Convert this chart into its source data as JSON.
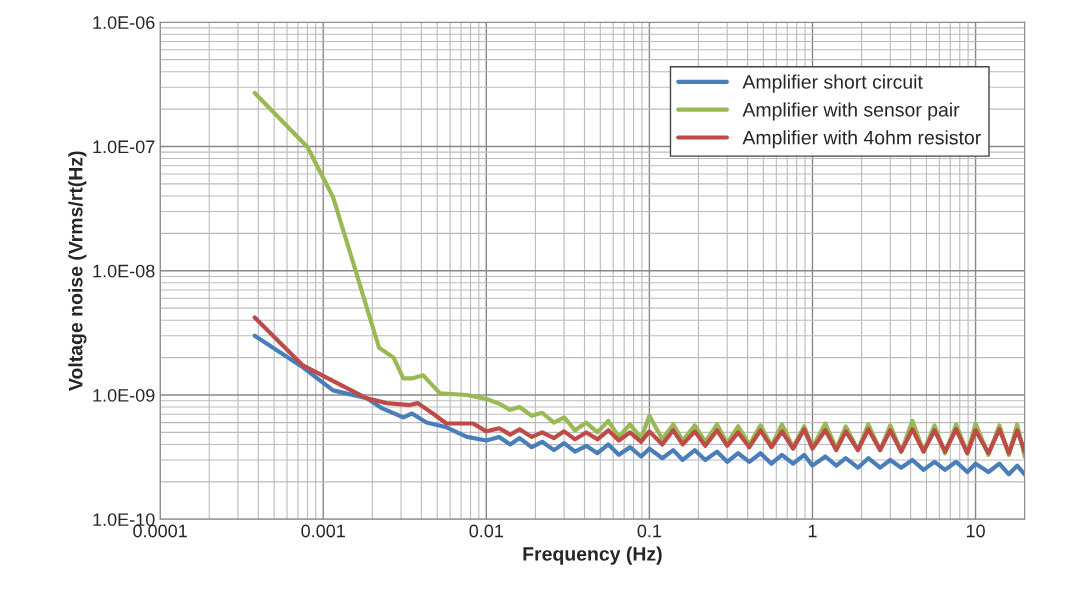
{
  "chart_data": {
    "type": "line",
    "xlabel": "Frequency (Hz)",
    "ylabel": "Voltage noise (Vrms/rt(Hz)",
    "log": "xy",
    "grid": true,
    "legend": "top right",
    "marker": "none",
    "line_style": "solid",
    "xlim": [
      0.0001,
      20
    ],
    "xticks": [
      0.0001,
      0.001,
      0.01,
      0.1,
      1,
      10
    ],
    "ylim": [
      1e-10,
      1e-06
    ],
    "yticks": [
      {
        "value": 1e-10,
        "label": "1.0E-10"
      },
      {
        "value": 1e-09,
        "label": "1.0E-09"
      },
      {
        "value": 1e-08,
        "label": "1.0E-08"
      },
      {
        "value": 1e-07,
        "label": "1.0E-07"
      },
      {
        "value": 1e-06,
        "label": "1.0E-06"
      }
    ],
    "series": [
      {
        "name": "Amplifier short circuit",
        "color": "#4a7ebb",
        "x": [
          0.00038,
          0.00075,
          0.00115,
          0.00185,
          0.0023,
          0.0031,
          0.0035,
          0.0043,
          0.0057,
          0.0076,
          0.01,
          0.012,
          0.014,
          0.016,
          0.019,
          0.022,
          0.026,
          0.03,
          0.035,
          0.041,
          0.048,
          0.056,
          0.065,
          0.076,
          0.089,
          0.1,
          0.12,
          0.14,
          0.16,
          0.19,
          0.22,
          0.26,
          0.3,
          0.35,
          0.41,
          0.48,
          0.56,
          0.65,
          0.76,
          0.89,
          1.0,
          1.2,
          1.4,
          1.6,
          1.9,
          2.2,
          2.6,
          3.0,
          3.5,
          4.1,
          4.8,
          5.6,
          6.5,
          7.6,
          8.9,
          10,
          12,
          14,
          16,
          18,
          20
        ],
        "values": [
          3e-09,
          1.67e-09,
          1.09e-09,
          9.4e-10,
          7.8e-10,
          6.6e-10,
          7.1e-10,
          6e-10,
          5.5e-10,
          4.6e-10,
          4.3e-10,
          4.6e-10,
          4e-10,
          4.5e-10,
          3.8e-10,
          4.2e-10,
          3.6e-10,
          4.1e-10,
          3.5e-10,
          3.9e-10,
          3.4e-10,
          4e-10,
          3.3e-10,
          3.8e-10,
          3.2e-10,
          3.7e-10,
          3.1e-10,
          3.6e-10,
          3e-10,
          3.6e-10,
          3e-10,
          3.5e-10,
          2.9e-10,
          3.4e-10,
          2.9e-10,
          3.4e-10,
          2.8e-10,
          3.3e-10,
          2.8e-10,
          3.3e-10,
          2.7e-10,
          3.2e-10,
          2.7e-10,
          3.1e-10,
          2.6e-10,
          3.1e-10,
          2.6e-10,
          3e-10,
          2.6e-10,
          3e-10,
          2.5e-10,
          2.9e-10,
          2.5e-10,
          2.9e-10,
          2.4e-10,
          2.8e-10,
          2.4e-10,
          2.8e-10,
          2.3e-10,
          2.7e-10,
          2.3e-10
        ]
      },
      {
        "name": "Amplifier with sensor pair",
        "color": "#98b954",
        "x": [
          0.00038,
          0.0008,
          0.00115,
          0.0016,
          0.0019,
          0.0022,
          0.0027,
          0.0031,
          0.0035,
          0.0041,
          0.0052,
          0.0076,
          0.01,
          0.012,
          0.014,
          0.016,
          0.019,
          0.022,
          0.026,
          0.03,
          0.035,
          0.041,
          0.048,
          0.056,
          0.065,
          0.076,
          0.089,
          0.1,
          0.12,
          0.14,
          0.16,
          0.19,
          0.22,
          0.26,
          0.3,
          0.35,
          0.41,
          0.48,
          0.56,
          0.65,
          0.76,
          0.89,
          1.0,
          1.2,
          1.4,
          1.6,
          1.9,
          2.2,
          2.6,
          3.0,
          3.5,
          4.1,
          4.8,
          5.6,
          6.5,
          7.6,
          8.9,
          10,
          12,
          14,
          16,
          18,
          20
        ],
        "values": [
          2.7e-07,
          9.9e-08,
          3.9e-08,
          9.5e-09,
          4.5e-09,
          2.4e-09,
          2e-09,
          1.36e-09,
          1.36e-09,
          1.44e-09,
          1.03e-09,
          1e-09,
          9.3e-10,
          8.5e-10,
          7.6e-10,
          8e-10,
          6.8e-10,
          7.2e-10,
          6e-10,
          6.6e-10,
          5.2e-10,
          6e-10,
          5e-10,
          6.2e-10,
          4.6e-10,
          5.8e-10,
          4.5e-10,
          6.8e-10,
          4.4e-10,
          5.8e-10,
          4.3e-10,
          5.7e-10,
          4.2e-10,
          5.8e-10,
          4.1e-10,
          5.6e-10,
          4e-10,
          5.7e-10,
          3.9e-10,
          5.8e-10,
          3.8e-10,
          5.6e-10,
          3.8e-10,
          5.9e-10,
          3.7e-10,
          5.6e-10,
          3.6e-10,
          5.8e-10,
          3.6e-10,
          5.7e-10,
          3.5e-10,
          6.2e-10,
          3.5e-10,
          5.7e-10,
          3.4e-10,
          5.8e-10,
          3.4e-10,
          5.9e-10,
          3.3e-10,
          5.7e-10,
          3.3e-10,
          5.8e-10,
          3.2e-10
        ]
      },
      {
        "name": "Amplifier with 4ohm resistor",
        "color": "#be4b48",
        "x": [
          0.00038,
          0.00075,
          0.00185,
          0.00245,
          0.0034,
          0.0038,
          0.0047,
          0.0057,
          0.0083,
          0.01,
          0.012,
          0.014,
          0.016,
          0.019,
          0.022,
          0.026,
          0.03,
          0.035,
          0.041,
          0.048,
          0.056,
          0.065,
          0.076,
          0.089,
          0.1,
          0.12,
          0.14,
          0.16,
          0.19,
          0.22,
          0.26,
          0.3,
          0.35,
          0.41,
          0.48,
          0.56,
          0.65,
          0.76,
          0.89,
          1.0,
          1.2,
          1.4,
          1.6,
          1.9,
          2.2,
          2.6,
          3.0,
          3.5,
          4.1,
          4.8,
          5.6,
          6.5,
          7.6,
          8.9,
          10,
          12,
          14,
          16,
          18,
          20
        ],
        "values": [
          4.2e-09,
          1.73e-09,
          9.4e-10,
          8.6e-10,
          8.3e-10,
          8.6e-10,
          7.1e-10,
          5.9e-10,
          5.9e-10,
          5.1e-10,
          5.4e-10,
          4.8e-10,
          5.3e-10,
          4.6e-10,
          5e-10,
          4.5e-10,
          5.1e-10,
          4.4e-10,
          5e-10,
          4.4e-10,
          5.2e-10,
          4.3e-10,
          5e-10,
          4.2e-10,
          5.1e-10,
          4e-10,
          5.2e-10,
          4e-10,
          5.1e-10,
          3.9e-10,
          5.2e-10,
          3.9e-10,
          5e-10,
          3.8e-10,
          5.2e-10,
          3.8e-10,
          5.1e-10,
          3.7e-10,
          5.3e-10,
          3.7e-10,
          5.2e-10,
          3.6e-10,
          5.1e-10,
          3.6e-10,
          5.3e-10,
          3.6e-10,
          5.2e-10,
          3.5e-10,
          5.3e-10,
          3.5e-10,
          5.2e-10,
          3.5e-10,
          5.3e-10,
          3.4e-10,
          5.2e-10,
          3.4e-10,
          5.3e-10,
          3.4e-10,
          5.2e-10,
          3.5e-10
        ]
      }
    ]
  }
}
